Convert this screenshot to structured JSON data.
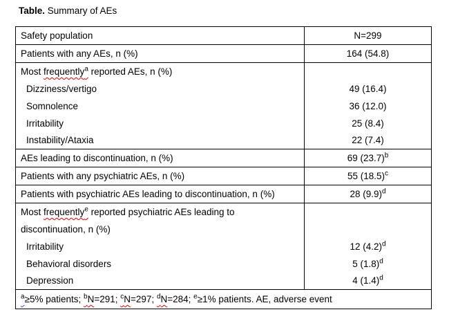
{
  "title": {
    "bold": "Table.",
    "text": " Summary of AEs"
  },
  "colors": {
    "text": "#000000",
    "border": "#000000",
    "background": "#ffffff",
    "spell_red": "#e10000",
    "grammar_blue": "#2a52e0"
  },
  "table": {
    "rows": [
      {
        "label": "Safety population",
        "value": "N=299"
      },
      {
        "label": "Patients with any AEs, n (%)",
        "value": "164 (54.8)"
      },
      {
        "header_pre": "Most ",
        "header_wavy": "frequently",
        "header_sup": "a",
        "header_post": " reported AEs, n (%)"
      },
      {
        "label": "Dizziness/vertigo",
        "value": "49 (16.4)"
      },
      {
        "label": "Somnolence",
        "value": "36 (12.0)"
      },
      {
        "label": "Irritability",
        "value": "25 (8.4)"
      },
      {
        "label": "Instability/Ataxia",
        "value": "22 (7.4)"
      },
      {
        "label": "AEs leading to discontinuation, n (%)",
        "value": "69 (23.7)",
        "value_sup": "b"
      },
      {
        "label": "Patients with any psychiatric AEs, n (%)",
        "value": "55 (18.5)",
        "value_sup": "c"
      },
      {
        "label": "Patients with psychiatric AEs leading to discontinuation, n (%)",
        "value": "28 (9.9)",
        "value_sup": "d"
      },
      {
        "header_pre": "Most ",
        "header_wavy": "frequently",
        "header_sup": "e",
        "header_post": " reported psychiatric AEs leading to"
      },
      {
        "label_cont": "discontinuation, n (%)"
      },
      {
        "label": "Irritability",
        "value": "12 (4.2)",
        "value_sup": "d"
      },
      {
        "label": "Behavioral disorders",
        "value": "5 (1.8)",
        "value_sup": "d"
      },
      {
        "label": "Depression",
        "value": "4 (1.4)",
        "value_sup": "d"
      }
    ],
    "footnote": {
      "sup_a": "a",
      "seg_1": "≥5% patients; ",
      "sup_b": "b",
      "n_b": "N",
      "seg_2": "=291; ",
      "sup_c": "c",
      "n_c": "N",
      "seg_3": "=297; ",
      "sup_d": "d",
      "n_d": "N",
      "seg_4": "=284; ",
      "sup_e": "e",
      "seg_5": "≥1% patients. AE, adverse event"
    }
  }
}
